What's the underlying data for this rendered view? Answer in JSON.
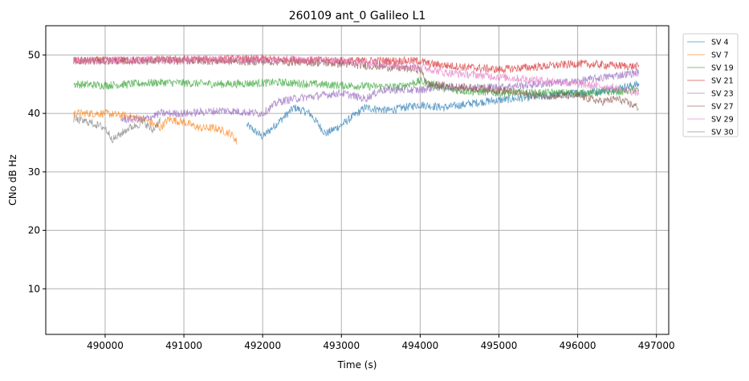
{
  "chart_data": {
    "type": "line",
    "title": "260109 ant_0 Galileo L1",
    "xlabel": "Time (s)",
    "ylabel": "CNo dB Hz",
    "xlim": [
      489246,
      497156
    ],
    "ylim": [
      2.2,
      55
    ],
    "xticks": [
      490000,
      491000,
      492000,
      493000,
      494000,
      495000,
      496000,
      497000
    ],
    "yticks": [
      10,
      20,
      30,
      40,
      50
    ],
    "grid": true,
    "legend_placement": "outside-top-right",
    "series": [
      {
        "name": "SV 4",
        "color": "#1f77b4",
        "x": [
          491800,
          492000,
          492200,
          492400,
          492600,
          492800,
          493000,
          493300,
          493600,
          494000,
          494300,
          494800,
          495200,
          495600,
          496000,
          496400,
          496780
        ],
        "y": [
          38,
          36,
          38.5,
          41,
          40,
          36.5,
          38,
          41,
          40.5,
          41.5,
          41,
          42,
          42.5,
          43,
          43.5,
          44,
          45
        ]
      },
      {
        "name": "SV 7",
        "color": "#ff7f0e",
        "x": [
          489600,
          490000,
          490300,
          490500,
          490700,
          490800,
          491000,
          491200,
          491400,
          491600,
          491680
        ],
        "y": [
          40,
          40,
          39.5,
          39,
          37.5,
          39,
          38.5,
          37.5,
          37.5,
          36.5,
          35
        ]
      },
      {
        "name": "SV 19",
        "color": "#2ca02c",
        "x": [
          489600,
          490000,
          490700,
          491500,
          492200,
          493000,
          493700,
          494000,
          494400,
          495000,
          495600,
          496200,
          496780
        ],
        "y": [
          45,
          44.8,
          45.3,
          45,
          45.3,
          44.8,
          44.5,
          45.5,
          44,
          43.5,
          43.5,
          43.5,
          44
        ]
      },
      {
        "name": "SV 21",
        "color": "#d62728",
        "x": [
          489600,
          491000,
          492000,
          493000,
          494000,
          494100,
          494500,
          495000,
          495500,
          496000,
          496780
        ],
        "y": [
          49,
          49.2,
          49.3,
          49,
          49,
          48.5,
          48,
          47.5,
          48,
          48.5,
          48
        ]
      },
      {
        "name": "SV 23",
        "color": "#9467bd",
        "x": [
          490200,
          490500,
          490700,
          491000,
          491500,
          492000,
          492200,
          492400,
          492700,
          493000,
          493300,
          493500,
          494000,
          494200,
          494500,
          495000,
          495500,
          496000,
          496500,
          496780
        ],
        "y": [
          39,
          39,
          40,
          40,
          40.5,
          40,
          42,
          42.5,
          43,
          43.5,
          42.5,
          44,
          44,
          44.5,
          44.5,
          44.5,
          45,
          45.5,
          46.5,
          47
        ]
      },
      {
        "name": "SV 27",
        "color": "#8c564b",
        "x": [
          489600,
          491000,
          492500,
          493000,
          493500,
          494000,
          494100,
          494500,
          495000,
          495500,
          496000,
          496300,
          496500,
          496780
        ],
        "y": [
          49,
          49,
          48.8,
          48.5,
          48,
          47.5,
          45,
          44.5,
          44,
          43,
          43,
          42,
          42.5,
          41
        ]
      },
      {
        "name": "SV 29",
        "color": "#e377c2",
        "x": [
          489600,
          491000,
          492000,
          493000,
          493500,
          494000,
          494300,
          494800,
          495200,
          495700,
          496000,
          496400,
          496780
        ],
        "y": [
          49,
          49.2,
          49.2,
          49,
          48.5,
          48,
          47,
          46.5,
          46,
          45.5,
          45,
          44.5,
          43.5
        ]
      },
      {
        "name": "SV 30",
        "color": "#7f7f7f",
        "x": [
          489600,
          489800,
          490000,
          490100,
          490300,
          490500,
          490600,
          490700
        ],
        "y": [
          39,
          38.5,
          37.5,
          35.5,
          37.5,
          38.5,
          37,
          39
        ]
      }
    ]
  }
}
